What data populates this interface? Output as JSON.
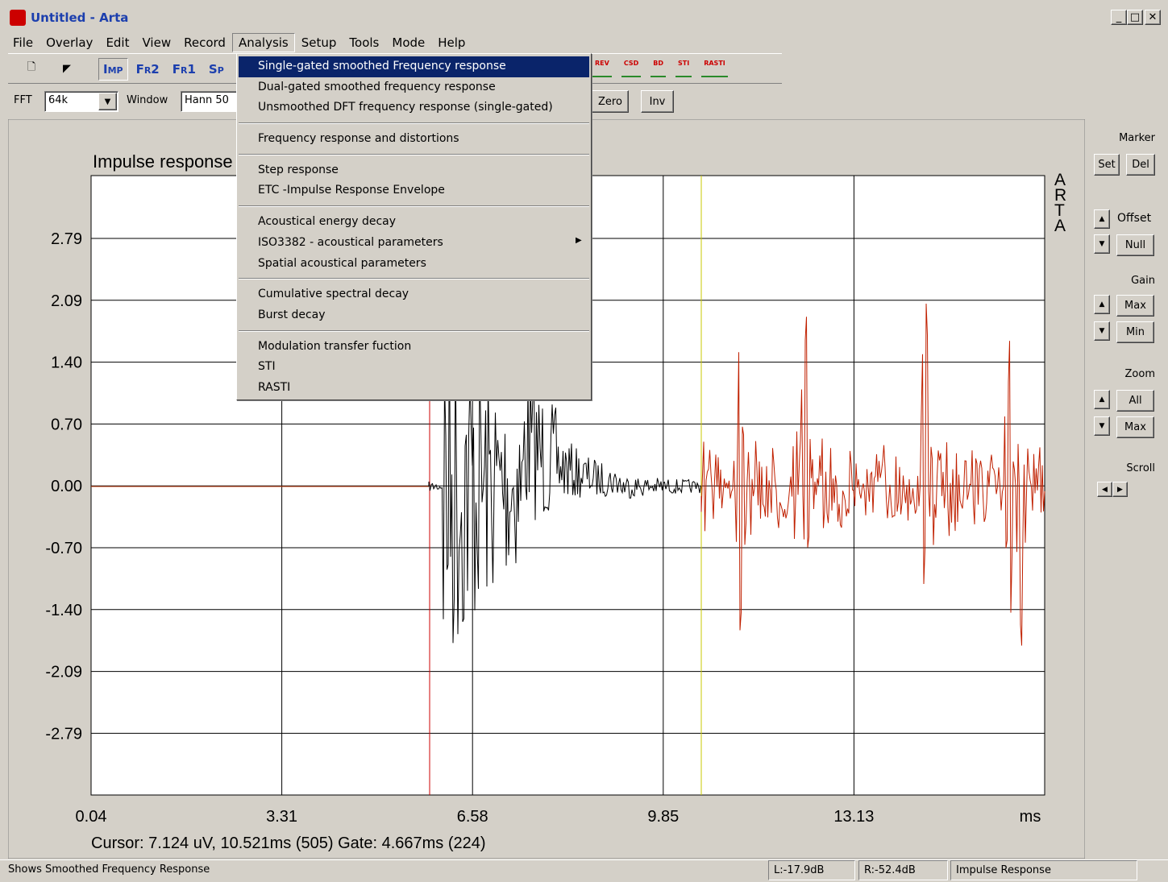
{
  "window": {
    "title": "Untitled - Arta"
  },
  "menu": [
    "File",
    "Overlay",
    "Edit",
    "View",
    "Record",
    "Analysis",
    "Setup",
    "Tools",
    "Mode",
    "Help"
  ],
  "toolbar": {
    "view_buttons": [
      "Imp",
      "Fr2",
      "Fr1",
      "Sp"
    ],
    "analysis_icons": [
      "REV",
      "CSD",
      "BD",
      "STI",
      "RASTI"
    ]
  },
  "controls": {
    "fft_label": "FFT",
    "fft_value": "64k",
    "window_label": "Window",
    "window_value": "Hann 50",
    "zero": "Zero",
    "inv": "Inv"
  },
  "analysis_menu": {
    "groups": [
      [
        "Single-gated smoothed Frequency response",
        "Dual-gated smoothed frequency response",
        "Unsmoothed DFT frequency response (single-gated)"
      ],
      [
        "Frequency response and distortions"
      ],
      [
        "Step response",
        "ETC -Impulse Response Envelope"
      ],
      [
        "Acoustical energy decay",
        "ISO3382 - acoustical parameters",
        "Spatial acoustical parameters"
      ],
      [
        "Cumulative spectral decay",
        "Burst decay"
      ],
      [
        "Modulation transfer fuction",
        "STI",
        "RASTI"
      ]
    ]
  },
  "plot": {
    "title": "Impulse response",
    "brand": "ARTA",
    "yticks": [
      "2.79",
      "2.09",
      "1.40",
      "0.70",
      "0.00",
      "-0.70",
      "-1.40",
      "-2.09",
      "-2.79"
    ],
    "xticks": [
      "0.04",
      "3.31",
      "6.58",
      "9.85",
      "13.13"
    ],
    "x_unit": "ms",
    "cursor": "Cursor: 7.124 uV, 10.521ms (505)  Gate: 4.667ms (224)"
  },
  "side_panel": {
    "marker": "Marker",
    "set": "Set",
    "del": "Del",
    "offset": "Offset",
    "null": "Null",
    "gain": "Gain",
    "gain_max": "Max",
    "gain_min": "Min",
    "zoom": "Zoom",
    "zoom_all": "All",
    "zoom_max": "Max",
    "scroll": "Scroll"
  },
  "status": {
    "message": "Shows Smoothed Frequency Response",
    "left": "L:-17.9dB",
    "right": "R:-52.4dB",
    "mode": "Impulse Response"
  }
}
